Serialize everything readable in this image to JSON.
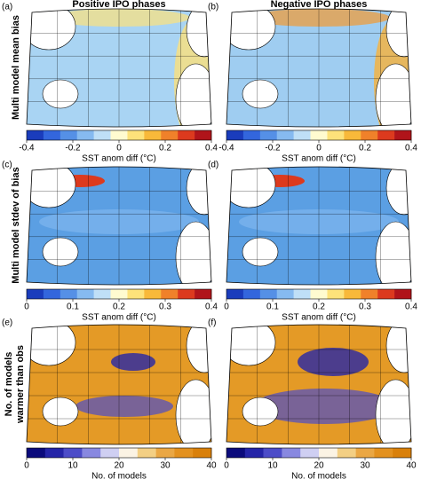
{
  "columns": [
    "Positive IPO phases",
    "Negative IPO phases"
  ],
  "panels": [
    "(a)",
    "(b)",
    "(c)",
    "(d)",
    "(e)",
    "(f)"
  ],
  "rows": [
    {
      "label": [
        "Multi model mean bias"
      ],
      "colorbar": {
        "label": "SST anom diff (°C)",
        "lim": [
          -0.4,
          0.4
        ],
        "ticks": [
          -0.4,
          -0.2,
          0,
          0.2,
          0.4
        ],
        "colors": [
          "#1a3cbc",
          "#3366dd",
          "#5590e6",
          "#86baf0",
          "#bfdff7",
          "#fffbd0",
          "#fde27a",
          "#f8b93a",
          "#f0812a",
          "#dc3a1e",
          "#b0141a"
        ]
      },
      "map_color": [
        "#a9d4f3",
        "#9fcdf1"
      ]
    },
    {
      "label": [
        "Multi model stdev of bias"
      ],
      "colorbar": {
        "label": "SST anom diff (°C)",
        "lim": [
          0,
          0.4
        ],
        "ticks": [
          0,
          0.1,
          0.2,
          0.3,
          0.4
        ],
        "colors": [
          "#1a3cbc",
          "#3366dd",
          "#5590e6",
          "#86baf0",
          "#bfdff7",
          "#fffbd0",
          "#fde27a",
          "#f8b93a",
          "#f0812a",
          "#dc3a1e",
          "#b0141a"
        ]
      },
      "map_color": [
        "#5b9fe3",
        "#5b9fe3"
      ]
    },
    {
      "label": [
        "No. of models",
        "warmer than obs"
      ],
      "colorbar": {
        "label": "No. of models",
        "lim": [
          0,
          40
        ],
        "ticks": [
          0,
          10,
          20,
          30,
          40
        ],
        "colors": [
          "#0b0b7c",
          "#2525a8",
          "#4c4cc8",
          "#8888e0",
          "#cfcff2",
          "#fbf3e4",
          "#f3cf84",
          "#eaa744",
          "#e3911f",
          "#d9800b"
        ]
      },
      "map_color": [
        "#e49a26",
        "#e49a26"
      ]
    }
  ]
}
